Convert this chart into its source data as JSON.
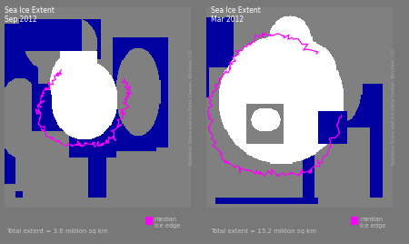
{
  "fig_width": 4.5,
  "fig_height": 2.68,
  "dpi": 100,
  "bg_color": "#787878",
  "ocean_color": [
    0,
    0,
    160
  ],
  "land_color": [
    128,
    128,
    128
  ],
  "ice_color": [
    255,
    255,
    255
  ],
  "median_color": "#ff00ff",
  "title_color": "#ffffff",
  "label_color": "#c8c8c8",
  "watermark_color": "#aaaaaa",
  "title1": "Sea Ice Extent\nSep 2012",
  "title2": "Sea Ice Extent\nMar 2012",
  "label1": "Total extent = 3.6 million sq km",
  "label2": "Total extent = 15.2 million sq km",
  "watermark": "National Snow and Ice Data Center, Boulder, CO",
  "title_fontsize": 5.5,
  "label_fontsize": 5.0,
  "watermark_fontsize": 3.8,
  "legend_fontsize": 4.8
}
